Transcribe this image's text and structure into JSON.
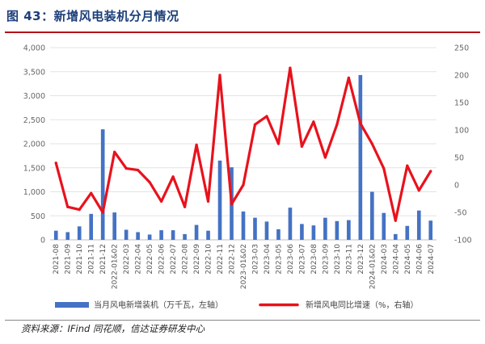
{
  "header": {
    "title": "图 43：新增风电装机分月情况"
  },
  "footer": {
    "source": "资料来源：IFind 同花顺，信达证券研发中心"
  },
  "colors": {
    "bar": "#4472c4",
    "line": "#e8121c",
    "title": "#1d3f7a",
    "rule": "#b30e1a"
  },
  "chart_data": {
    "type": "bar",
    "categories": [
      "2021-08",
      "2021-09",
      "2021-10",
      "2021-11",
      "2021-12",
      "2022-01&02",
      "2022-03",
      "2022-04",
      "2022-05",
      "2022-06",
      "2022-07",
      "2022-08",
      "2022-09",
      "2022-10",
      "2022-11",
      "2022-12",
      "2023-01&02",
      "2023-03",
      "2023-04",
      "2023-05",
      "2023-06",
      "2023-07",
      "2023-08",
      "2023-09",
      "2023-10",
      "2023-11",
      "2023-12",
      "2024-01&02",
      "2024-03",
      "2024-04",
      "2024-05",
      "2024-06",
      "2024-07"
    ],
    "series": [
      {
        "name": "当月风电新增装机（万千瓦，左轴）",
        "type": "bar",
        "axis": "left",
        "values": [
          190,
          160,
          280,
          540,
          2300,
          570,
          210,
          160,
          110,
          200,
          200,
          120,
          310,
          190,
          1650,
          1510,
          590,
          460,
          380,
          220,
          670,
          330,
          300,
          460,
          390,
          410,
          3430,
          1000,
          560,
          120,
          290,
          610,
          400
        ]
      },
      {
        "name": "新增风电同比增速（%，右轴）",
        "type": "line",
        "axis": "right",
        "values": [
          40,
          -40,
          -45,
          -15,
          -50,
          60,
          30,
          27,
          5,
          -30,
          15,
          -40,
          73,
          -30,
          200,
          -35,
          0,
          110,
          125,
          75,
          213,
          70,
          115,
          50,
          110,
          195,
          112,
          75,
          30,
          -65,
          35,
          -10,
          25
        ]
      }
    ],
    "y_left": {
      "ticks": [
        "0",
        "500",
        "1,000",
        "1,500",
        "2,000",
        "2,500",
        "3,000",
        "3,500",
        "4,000"
      ],
      "min": 0,
      "max": 4000,
      "step": 500
    },
    "y_right": {
      "ticks": [
        "-100",
        "-50",
        "0",
        "50",
        "100",
        "150",
        "200",
        "250"
      ],
      "min": -100,
      "max": 250,
      "step": 50
    },
    "legend_position": "bottom"
  }
}
